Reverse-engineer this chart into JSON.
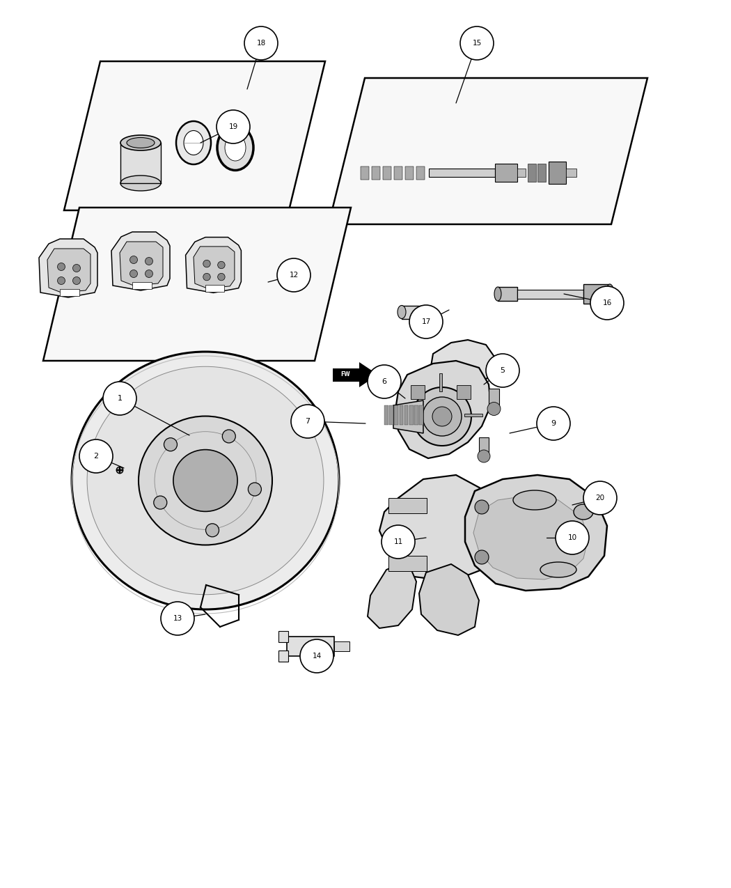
{
  "bg_color": "#ffffff",
  "line_color": "#000000",
  "fig_width": 10.5,
  "fig_height": 12.75,
  "dpi": 100,
  "callouts": [
    [
      18,
      3.75,
      0.62,
      3.55,
      1.28
    ],
    [
      19,
      3.35,
      1.82,
      2.88,
      2.05
    ],
    [
      15,
      6.85,
      0.62,
      6.55,
      1.48
    ],
    [
      12,
      4.22,
      3.95,
      3.85,
      4.05
    ],
    [
      16,
      8.72,
      4.35,
      8.1,
      4.22
    ],
    [
      17,
      6.12,
      4.62,
      6.45,
      4.45
    ],
    [
      1,
      1.72,
      5.72,
      2.72,
      6.25
    ],
    [
      2,
      1.38,
      6.55,
      1.78,
      6.72
    ],
    [
      5,
      7.22,
      5.32,
      6.95,
      5.52
    ],
    [
      6,
      5.52,
      5.48,
      5.82,
      5.72
    ],
    [
      7,
      4.42,
      6.05,
      5.25,
      6.08
    ],
    [
      9,
      7.95,
      6.08,
      7.32,
      6.22
    ],
    [
      10,
      8.22,
      7.72,
      7.85,
      7.72
    ],
    [
      11,
      5.72,
      7.78,
      6.12,
      7.72
    ],
    [
      13,
      2.55,
      8.88,
      2.95,
      8.82
    ],
    [
      14,
      4.55,
      9.42,
      4.35,
      9.32
    ],
    [
      20,
      8.62,
      7.15,
      8.22,
      7.25
    ]
  ]
}
